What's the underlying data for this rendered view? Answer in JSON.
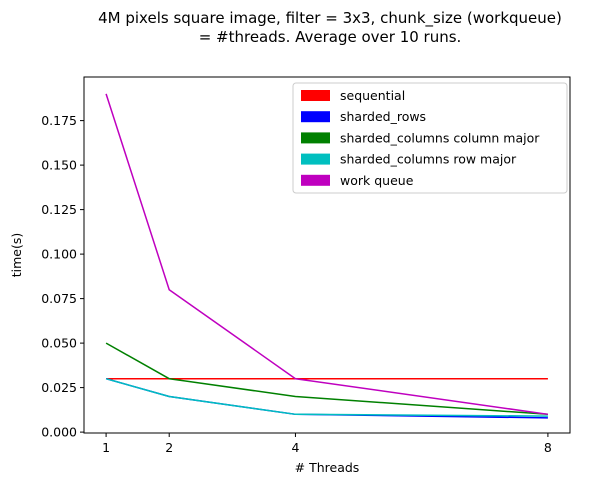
{
  "chart_data": {
    "type": "line",
    "title_lines": [
      "4M pixels square image, filter = 3x3, chunk_size (workqueue)",
      "= #threads. Average over 10 runs."
    ],
    "xlabel": "# Threads",
    "ylabel": "time(s)",
    "x": [
      1,
      2,
      4,
      8
    ],
    "xticks": [
      "1",
      "2",
      "4",
      "8"
    ],
    "yticks": [
      "0.000",
      "0.025",
      "0.050",
      "0.075",
      "0.100",
      "0.125",
      "0.150",
      "0.175"
    ],
    "xlim": [
      0.65,
      8.35
    ],
    "ylim": [
      -0.0005,
      0.1995
    ],
    "grid": false,
    "legend_position": "top-right",
    "series": [
      {
        "name": "sequential",
        "color": "#ff0000",
        "values": [
          0.03,
          0.03,
          0.03,
          0.03
        ]
      },
      {
        "name": "sharded_rows",
        "color": "#0000ff",
        "values": [
          0.03,
          0.02,
          0.01,
          0.008
        ]
      },
      {
        "name": "sharded_columns column major",
        "color": "#008000",
        "values": [
          0.05,
          0.03,
          0.02,
          0.01
        ]
      },
      {
        "name": "sharded_columns row major",
        "color": "#00bfbf",
        "values": [
          0.03,
          0.02,
          0.01,
          0.009
        ]
      },
      {
        "name": "work queue",
        "color": "#bf00bf",
        "values": [
          0.19,
          0.08,
          0.03,
          0.01
        ]
      }
    ]
  }
}
